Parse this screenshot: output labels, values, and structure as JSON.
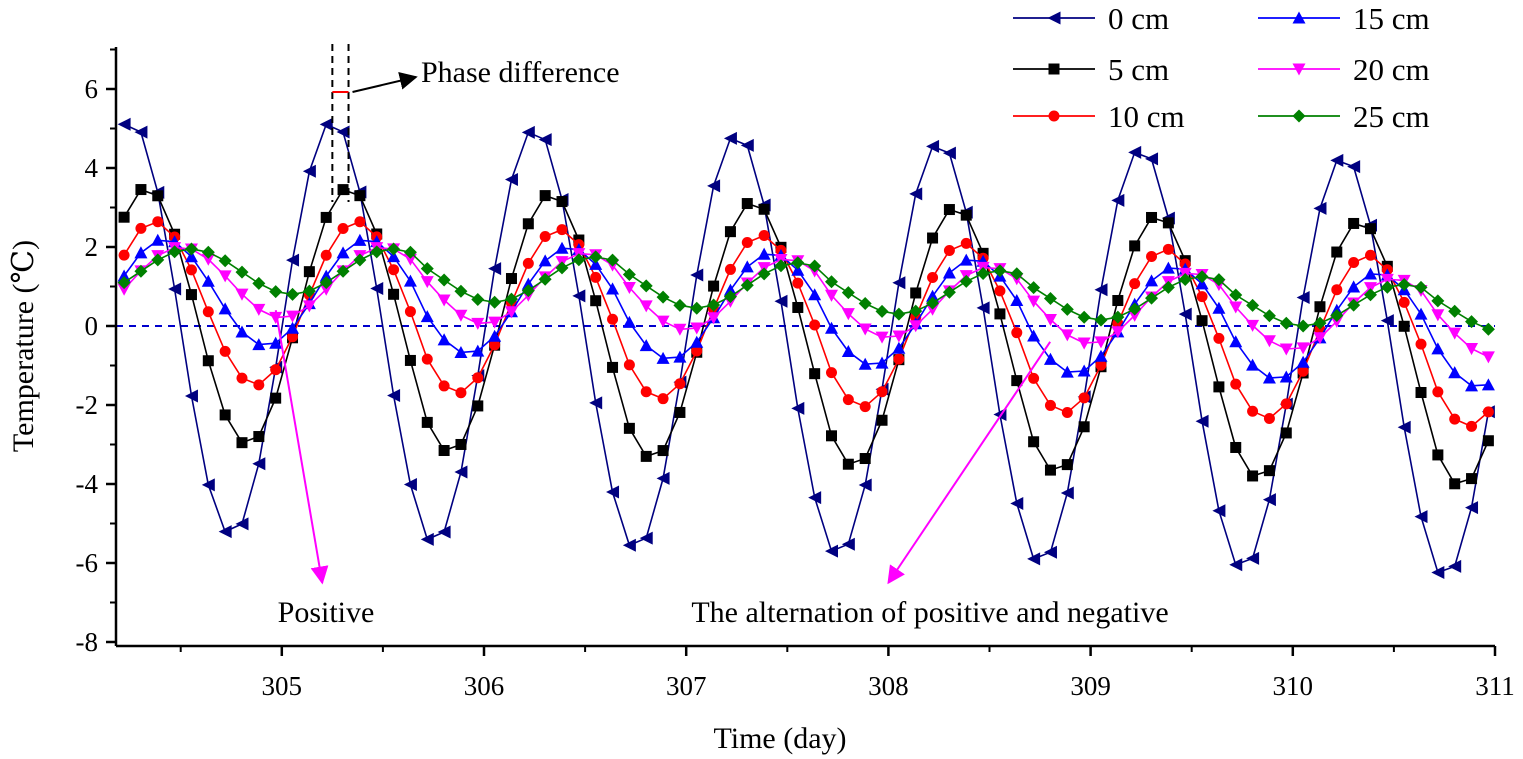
{
  "chart_data": {
    "type": "line",
    "title": "",
    "xlabel": "Time (day)",
    "ylabel": "Temperature (℃)",
    "xlim": [
      304.18,
      311
    ],
    "ylim": [
      -8,
      7
    ],
    "x_ticks": [
      "305",
      "306",
      "307",
      "308",
      "309",
      "310",
      "311"
    ],
    "y_ticks": [
      "-8",
      "-6",
      "-4",
      "-2",
      "0",
      "2",
      "4",
      "6"
    ],
    "grid": false,
    "legend_position": "top-right",
    "zero_line": {
      "y": 0,
      "color": "#0000CC",
      "style": "dashed"
    },
    "sample_interval_day": 0.0833,
    "series": [
      {
        "name": "0 cm",
        "color": "#000080",
        "marker": "triangle-left",
        "daily_max": [
          5.2,
          5.0,
          4.85,
          4.65,
          4.5,
          4.3,
          4.15
        ],
        "daily_min": [
          -5.3,
          -5.5,
          -5.65,
          -5.8,
          -6.0,
          -6.15,
          -6.35
        ],
        "peak_day_offset": 0.25,
        "mean": -0.3
      },
      {
        "name": "5 cm",
        "color": "#000000",
        "marker": "square",
        "daily_max": [
          3.5,
          3.35,
          3.15,
          3.0,
          2.8,
          2.65,
          2.5
        ],
        "daily_min": [
          -3.0,
          -3.2,
          -3.35,
          -3.55,
          -3.7,
          -3.85,
          -4.05
        ],
        "peak_day_offset": 0.33,
        "mean": 0.0
      },
      {
        "name": "10 cm",
        "color": "#FF0000",
        "marker": "circle",
        "daily_max": [
          2.65,
          2.45,
          2.3,
          2.1,
          1.95,
          1.8,
          1.6
        ],
        "daily_min": [
          -1.5,
          -1.7,
          -1.85,
          -2.05,
          -2.2,
          -2.35,
          -2.55
        ],
        "peak_day_offset": 0.37,
        "mean": 0.3
      },
      {
        "name": "15 cm",
        "color": "#0000FF",
        "marker": "triangle-up",
        "daily_max": [
          2.2,
          2.0,
          1.85,
          1.7,
          1.5,
          1.35,
          1.2
        ],
        "daily_min": [
          -0.5,
          -0.7,
          -0.85,
          -1.0,
          -1.2,
          -1.35,
          -1.55
        ],
        "peak_day_offset": 0.42,
        "mean": 0.7
      },
      {
        "name": "20 cm",
        "color": "#FF00FF",
        "marker": "triangle-down",
        "daily_max": [
          2.0,
          1.85,
          1.7,
          1.5,
          1.35,
          1.2,
          1.0
        ],
        "daily_min": [
          0.2,
          0.05,
          -0.1,
          -0.3,
          -0.45,
          -0.6,
          -0.8
        ],
        "peak_day_offset": 0.5,
        "mean": 0.9
      },
      {
        "name": "25 cm",
        "color": "#008000",
        "marker": "diamond",
        "daily_max": [
          1.95,
          1.75,
          1.6,
          1.4,
          1.25,
          1.05,
          0.9
        ],
        "daily_min": [
          0.8,
          0.6,
          0.45,
          0.3,
          0.15,
          0.0,
          -0.15
        ],
        "peak_day_offset": 0.55,
        "mean": 1.0
      }
    ],
    "annotations": [
      {
        "text": "Phase difference",
        "arrow_to": [
          305.35,
          5.9
        ]
      },
      {
        "text": "Positive",
        "arrow_from": [
          304.97,
          0.4
        ],
        "arrow_to": [
          305.2,
          -6.5
        ]
      },
      {
        "text": "The alternation of positive and negative",
        "arrow_from": [
          308.8,
          -0.4
        ],
        "arrow_to": [
          308.0,
          -6.5
        ]
      }
    ],
    "phase_difference_markers": [
      305.25,
      305.33
    ]
  }
}
